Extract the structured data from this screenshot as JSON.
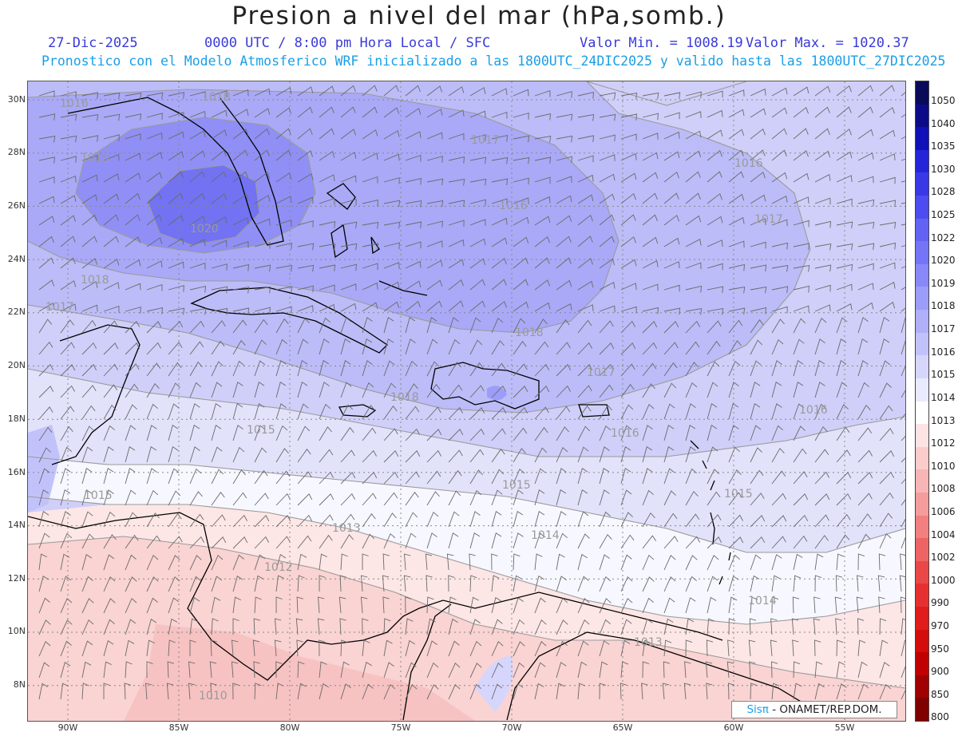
{
  "header": {
    "title": "Presion a nivel del mar (hPa,somb.)",
    "date": "27-Dic-2025",
    "time_info": "0000 UTC / 8:00 pm Hora Local / SFC",
    "min_label": "Valor Min. = 1008.19",
    "max_label": "Valor Max. = 1020.37",
    "model_info": "Pronostico con el Modelo Atmosferico WRF inicializado a las 1800UTC_24DIC2025 y valido hasta las  1800UTC_27DIC2025"
  },
  "axes": {
    "lat_labels": [
      "30N",
      "28N",
      "26N",
      "24N",
      "22N",
      "20N",
      "18N",
      "16N",
      "14N",
      "12N",
      "10N",
      "8N"
    ],
    "lon_labels": [
      "90W",
      "85W",
      "80W",
      "75W",
      "70W",
      "65W",
      "60W",
      "55W"
    ]
  },
  "contour_labels": [
    "1018",
    "1016",
    "1017",
    "1016",
    "1017",
    "1020",
    "1019",
    "1018",
    "1017",
    "1018",
    "1016",
    "1018",
    "1017",
    "1015",
    "1016",
    "1016",
    "1015",
    "1015",
    "1015",
    "1013",
    "1014",
    "1012",
    "1014",
    "1013",
    "1010"
  ],
  "colorbar": {
    "levels": [
      "1050",
      "1040",
      "1035",
      "1030",
      "1028",
      "1025",
      "1022",
      "1020",
      "1019",
      "1018",
      "1017",
      "1016",
      "1015",
      "1014",
      "1013",
      "1012",
      "1010",
      "1008",
      "1006",
      "1004",
      "1002",
      "1000",
      "990",
      "970",
      "950",
      "900",
      "850",
      "800"
    ],
    "colors": [
      "#0a0a5a",
      "#0b0b8a",
      "#1010b8",
      "#2424d8",
      "#3838e6",
      "#4c4cf0",
      "#6262f5",
      "#7474f7",
      "#8888f8",
      "#9c9cf9",
      "#afaffa",
      "#c2c2fb",
      "#d6d6fc",
      "#eaeafe",
      "#ffffff",
      "#fde3e3",
      "#fbcccc",
      "#f8b5b5",
      "#f59c9c",
      "#f28080",
      "#ee6464",
      "#ea4848",
      "#e63030",
      "#e01c1c",
      "#d40c0c",
      "#c00000",
      "#a00000",
      "#800000"
    ]
  },
  "fields": {
    "palette": {
      "p1020": "#7272f3",
      "p1019": "#8f8ff6",
      "p1018": "#a9a9f7",
      "p1017": "#bcbcf8",
      "p1016": "#cfcff9",
      "p1015": "#e2e2fb",
      "p1014": "#f7f7ff",
      "p1013": "#fde6e6",
      "p1012": "#fad3d3",
      "p1011": "#f7c2c2",
      "land": "#000000",
      "barb": "#6a6a6a"
    }
  },
  "credit": {
    "system": "Sisπ",
    "org": " - ONAMET/REP.DOM."
  }
}
